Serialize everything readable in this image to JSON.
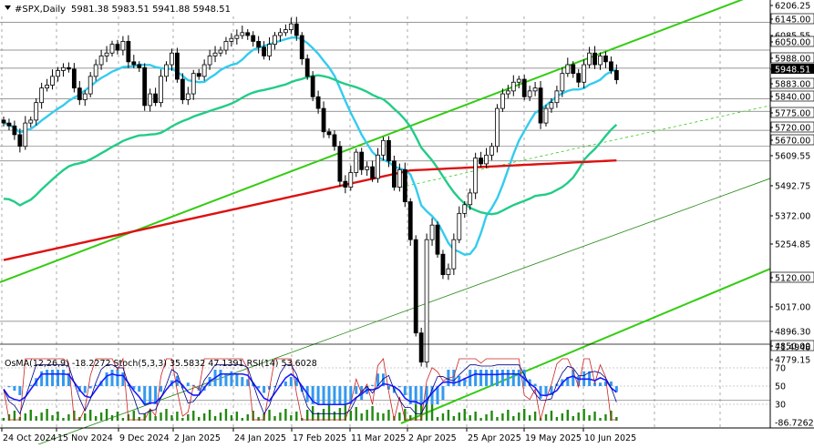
{
  "header": {
    "symbol": "#SPX,Daily",
    "ohlc": "5981.38 5983.51 5941.88 5948.51",
    "menu_icon": "triangle-down-icon"
  },
  "indicator_header": {
    "text": "OsMA(12,26,9) -18.2272 Stoch(5,3,3) 35.5832 47.1391 RSI(14) 53.6028"
  },
  "colors": {
    "background": "#ffffff",
    "candle": "#000000",
    "ma_fast": "#33ccee",
    "ma_mid": "#22cc88",
    "ma_slow": "#dd1111",
    "channel": "#33cc11",
    "grid": "#000000",
    "osma": "#3399ee",
    "stoch_main": "#000088",
    "stoch_signal": "#cc2222",
    "rsi": "#1a1aff",
    "price_box": "#000000",
    "label_bg": "#ffffff"
  },
  "price_axis": {
    "ticks": [
      "6206.25",
      "6145.00",
      "6085.55",
      "6050.00",
      "5988.00",
      "5948.51",
      "5883.00",
      "5840.00",
      "5775.00",
      "5720.00",
      "5670.00",
      "5609.55",
      "5492.75",
      "5372.00",
      "5254.85",
      "5120.00",
      "5017.00",
      "4896.30",
      "4850.00",
      "4779.15"
    ],
    "boxed": [
      "6145.00",
      "6050.00",
      "5988.00",
      "5883.00",
      "5840.00",
      "5775.00",
      "5720.00",
      "5670.00",
      "5120.00",
      "4850.00"
    ],
    "current": "5948.51"
  },
  "indicator_axis": {
    "ticks": [
      "71.4948",
      "70",
      "50",
      "30",
      "-86.7262"
    ]
  },
  "time_axis": {
    "labels": [
      "24 Oct 2024",
      "15 Nov 2024",
      "9 Dec 2024",
      "2 Jan 2025",
      "24 Jan 2025",
      "17 Feb 2025",
      "11 Mar 2025",
      "2 Apr 2025",
      "25 Apr 2025",
      "19 May 2025",
      "10 Jun 2025"
    ]
  },
  "chart_data": {
    "type": "candlestick",
    "title": "#SPX,Daily",
    "y_range": [
      4779.15,
      6206.25
    ],
    "horizontal_levels": [
      6145,
      6050,
      5988,
      5883,
      5840,
      5775,
      5720,
      5670,
      5120,
      4850
    ],
    "last_bar": {
      "open": 5981.38,
      "high": 5983.51,
      "low": 5941.88,
      "close": 5948.51
    },
    "close_series": [
      5800,
      5790,
      5760,
      5720,
      5800,
      5810,
      5870,
      5920,
      5930,
      5960,
      5980,
      5990,
      5985,
      5920,
      5880,
      5900,
      5960,
      6000,
      6030,
      6040,
      6070,
      6050,
      6080,
      6010,
      6000,
      5990,
      5860,
      5900,
      5870,
      5960,
      6000,
      6040,
      5950,
      5880,
      5900,
      5970,
      5960,
      6000,
      6030,
      6040,
      6050,
      6080,
      6090,
      6100,
      6110,
      6100,
      6080,
      6060,
      6030,
      6070,
      6100,
      6110,
      6120,
      6140,
      6100,
      6020,
      5960,
      5890,
      5850,
      5770,
      5760,
      5720,
      5600,
      5580,
      5630,
      5700,
      5640,
      5650,
      5610,
      5690,
      5740,
      5670,
      5580,
      5640,
      5530,
      5400,
      5080,
      4980,
      5400,
      5450,
      5350,
      5280,
      5300,
      5400,
      5490,
      5520,
      5560,
      5680,
      5660,
      5690,
      5720,
      5850,
      5900,
      5910,
      5940,
      5950,
      5890,
      5910,
      5920,
      5800,
      5850,
      5870,
      5910,
      5970,
      6000,
      5970,
      5940,
      6000,
      6040,
      6000,
      6030,
      6010,
      5980,
      5948.51
    ],
    "indicators": {
      "osma": {
        "params": "12,26,9",
        "value": -18.2272
      },
      "stochastic": {
        "params": "5,3,3",
        "main": 35.5832,
        "signal": 47.1391
      },
      "rsi": {
        "params": "14",
        "value": 53.6028
      }
    }
  }
}
